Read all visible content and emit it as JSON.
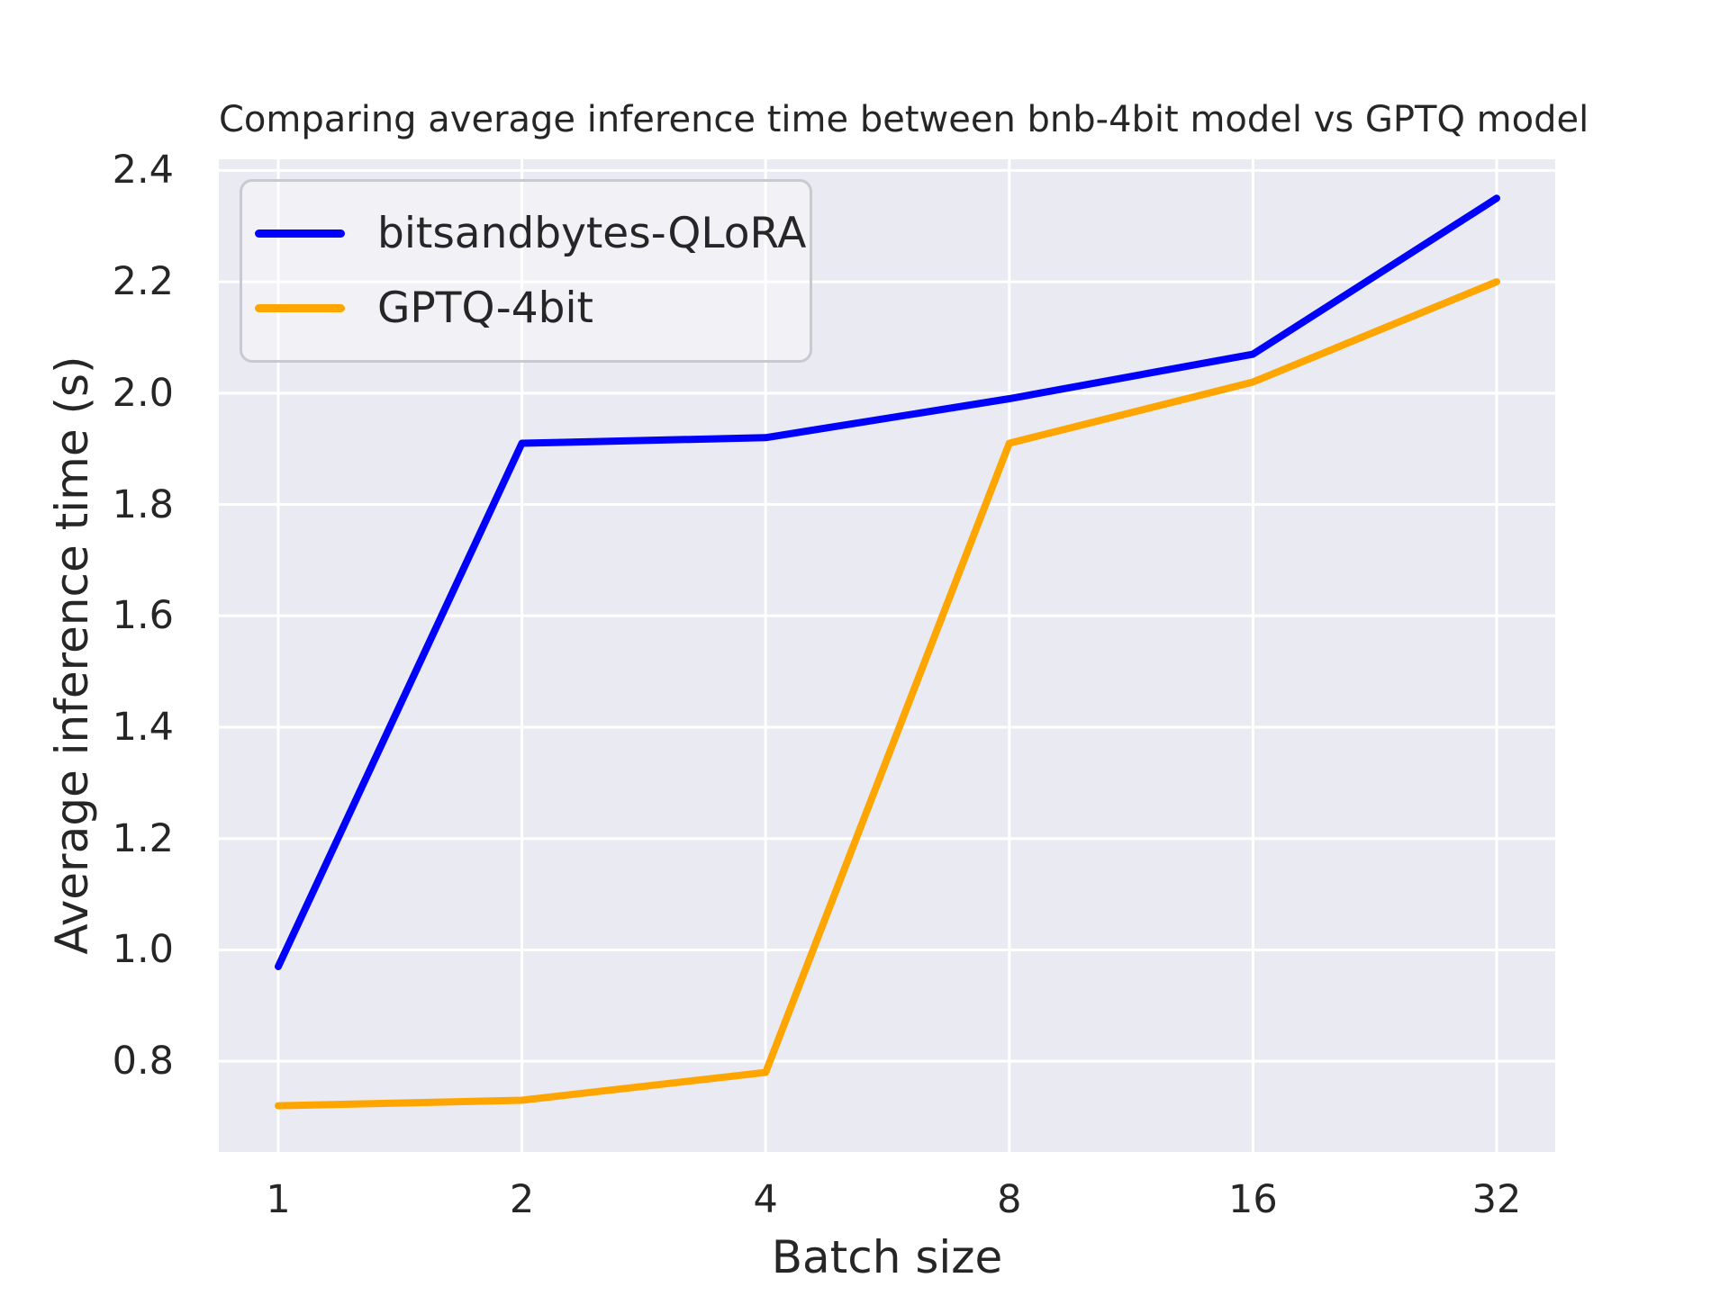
{
  "chart_data": {
    "type": "line",
    "title": "Comparing average inference time between bnb-4bit model vs GPTQ model",
    "xlabel": "Batch size",
    "ylabel": "Average inference time (s)",
    "categories": [
      "1",
      "2",
      "4",
      "8",
      "16",
      "32"
    ],
    "series": [
      {
        "name": "bitsandbytes-QLoRA",
        "color": "#0000ff",
        "values": [
          0.97,
          1.91,
          1.92,
          1.99,
          2.07,
          2.35
        ]
      },
      {
        "name": "GPTQ-4bit",
        "color": "#ffa500",
        "values": [
          0.72,
          0.73,
          0.78,
          1.91,
          2.02,
          2.2
        ]
      }
    ],
    "y_ticks": [
      "0.8",
      "1.0",
      "1.2",
      "1.4",
      "1.6",
      "1.8",
      "2.0",
      "2.2",
      "2.4"
    ],
    "ylim": [
      0.637,
      2.42
    ],
    "grid": true,
    "grid_color": "#ffffff",
    "plot_bg": "#eaeaf2",
    "text_color": "#262626",
    "legend_position": "upper left"
  }
}
